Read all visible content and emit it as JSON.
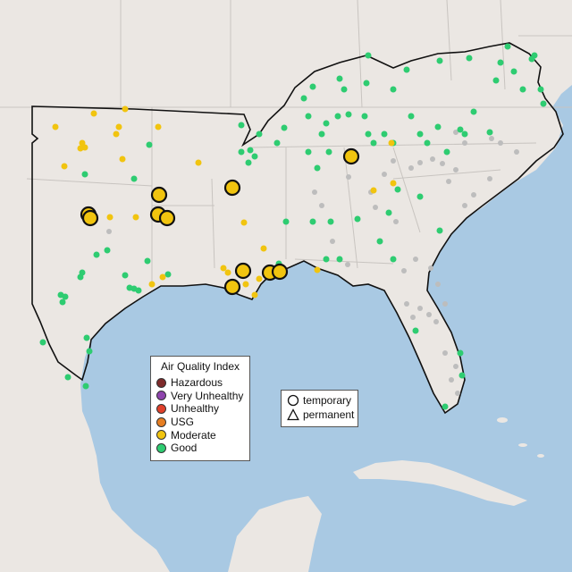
{
  "legend_aqi": {
    "title": "Air Quality Index",
    "items": [
      {
        "label": "Hazardous",
        "color": "#7e2b2b"
      },
      {
        "label": "Very Unhealthy",
        "color": "#8e44ad"
      },
      {
        "label": "Unhealthy",
        "color": "#e0402a"
      },
      {
        "label": "USG",
        "color": "#e67e22"
      },
      {
        "label": "Moderate",
        "color": "#f1c40f"
      },
      {
        "label": "Good",
        "color": "#2ecc71"
      }
    ]
  },
  "legend_type": {
    "items": [
      {
        "label": "temporary",
        "shape": "circle"
      },
      {
        "label": "permanent",
        "shape": "triangle"
      }
    ]
  },
  "colors": {
    "water": "#a9c9e3",
    "land": "#ebe7e3",
    "no_data": "#bdbdbd"
  }
}
